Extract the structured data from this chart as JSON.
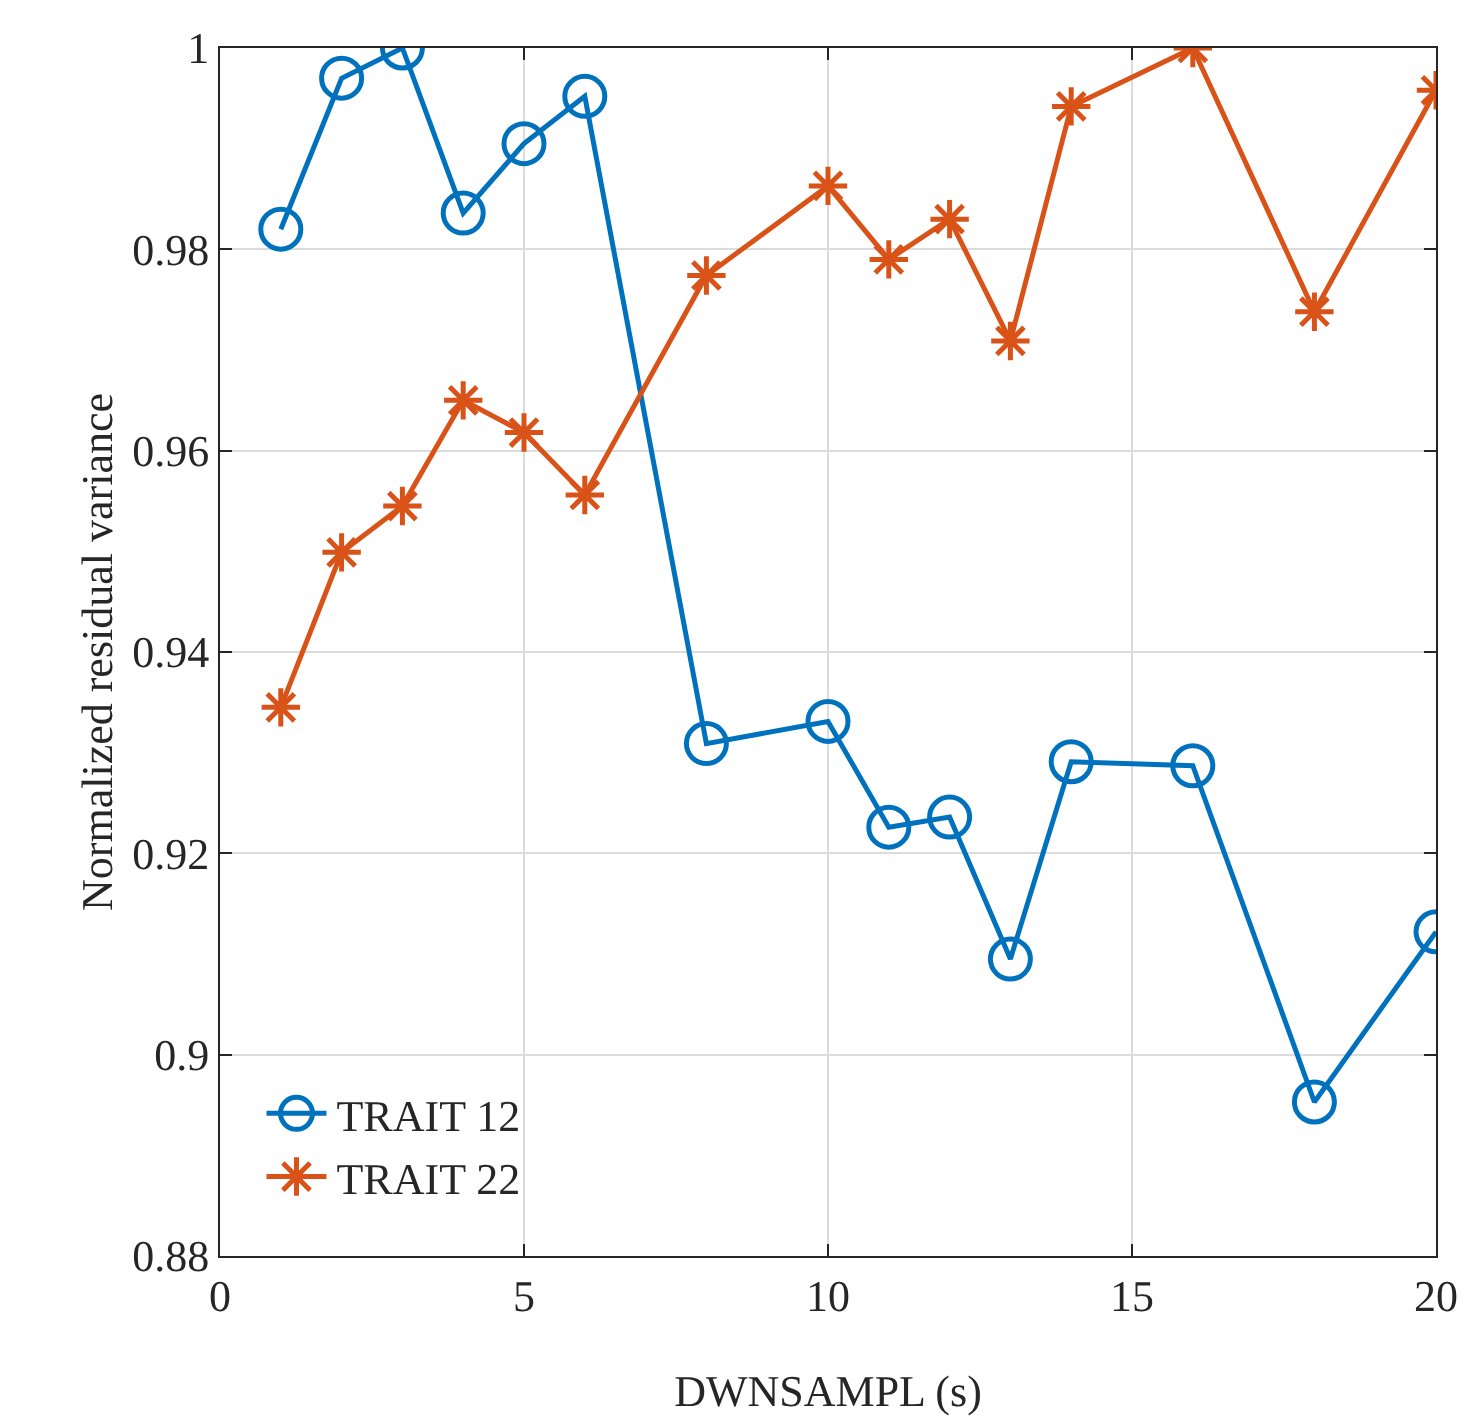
{
  "chart_data": {
    "type": "line",
    "xlabel": "DWNSAMPL (s)",
    "ylabel": "Normalized residual variance",
    "x": [
      1,
      2,
      3,
      4,
      5,
      6,
      8,
      10,
      11,
      12,
      13,
      14,
      16,
      18,
      20
    ],
    "series": [
      {
        "name": "TRAIT 12",
        "color": "#0072bd",
        "marker": "circle",
        "values": [
          0.982,
          0.997,
          1.0,
          0.9836,
          0.9905,
          0.9952,
          0.9309,
          0.9331,
          0.9226,
          0.9236,
          0.9095,
          0.9291,
          0.9287,
          0.8953,
          0.9122
        ]
      },
      {
        "name": "TRAIT 22",
        "color": "#d95319",
        "marker": "cross",
        "values": [
          0.9345,
          0.9499,
          0.9545,
          0.965,
          0.9618,
          0.9556,
          0.9774,
          0.9863,
          0.979,
          0.983,
          0.9709,
          0.9942,
          1.0,
          0.9738,
          0.9958
        ]
      }
    ],
    "xlim": [
      0,
      20
    ],
    "xticks": [
      0,
      5,
      10,
      15,
      20
    ],
    "ylim": [
      0.88,
      1
    ],
    "yticks": [
      0.88,
      0.9,
      0.92,
      0.94,
      0.96,
      0.98,
      1
    ],
    "grid": true,
    "legend": "bottom left",
    "line_style": "solid"
  }
}
